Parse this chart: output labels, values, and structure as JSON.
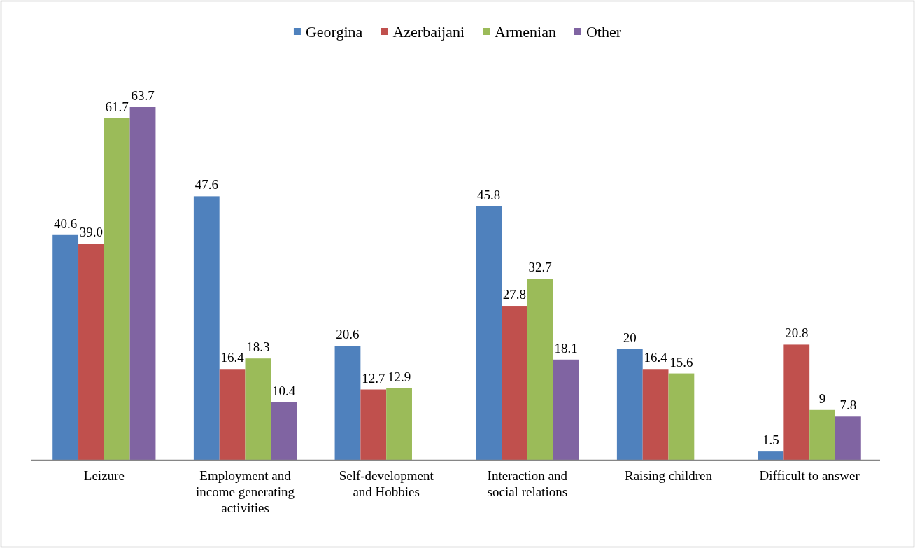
{
  "chart_data": {
    "type": "bar",
    "categories": [
      "Leizure",
      "Employment and income generating activities",
      "Self-development and Hobbies",
      "Interaction and social relations",
      "Raising children",
      "Difficult to answer"
    ],
    "series": [
      {
        "name": "Georgina",
        "color": "#4f81bd",
        "values": [
          40.6,
          47.6,
          20.6,
          45.8,
          20,
          1.5
        ],
        "value_labels": [
          "40.6",
          "47.6",
          "20.6",
          "45.8",
          "20",
          "1.5"
        ]
      },
      {
        "name": "Azerbaijani",
        "color": "#c0504d",
        "values": [
          39.0,
          16.4,
          12.7,
          27.8,
          16.4,
          20.8
        ],
        "value_labels": [
          "39.0",
          "16.4",
          "12.7",
          "27.8",
          "16.4",
          "20.8"
        ]
      },
      {
        "name": "Armenian",
        "color": "#9bbb59",
        "values": [
          61.7,
          18.3,
          12.9,
          32.7,
          15.6,
          9
        ],
        "value_labels": [
          "61.7",
          "18.3",
          "12.9",
          "32.7",
          "15.6",
          "9"
        ]
      },
      {
        "name": "Other",
        "color": "#8064a2",
        "values": [
          63.7,
          10.4,
          null,
          18.1,
          null,
          7.8
        ],
        "value_labels": [
          "63.7",
          "10.4",
          null,
          "18.1",
          null,
          "7.8"
        ]
      }
    ],
    "legend": "top"
  }
}
